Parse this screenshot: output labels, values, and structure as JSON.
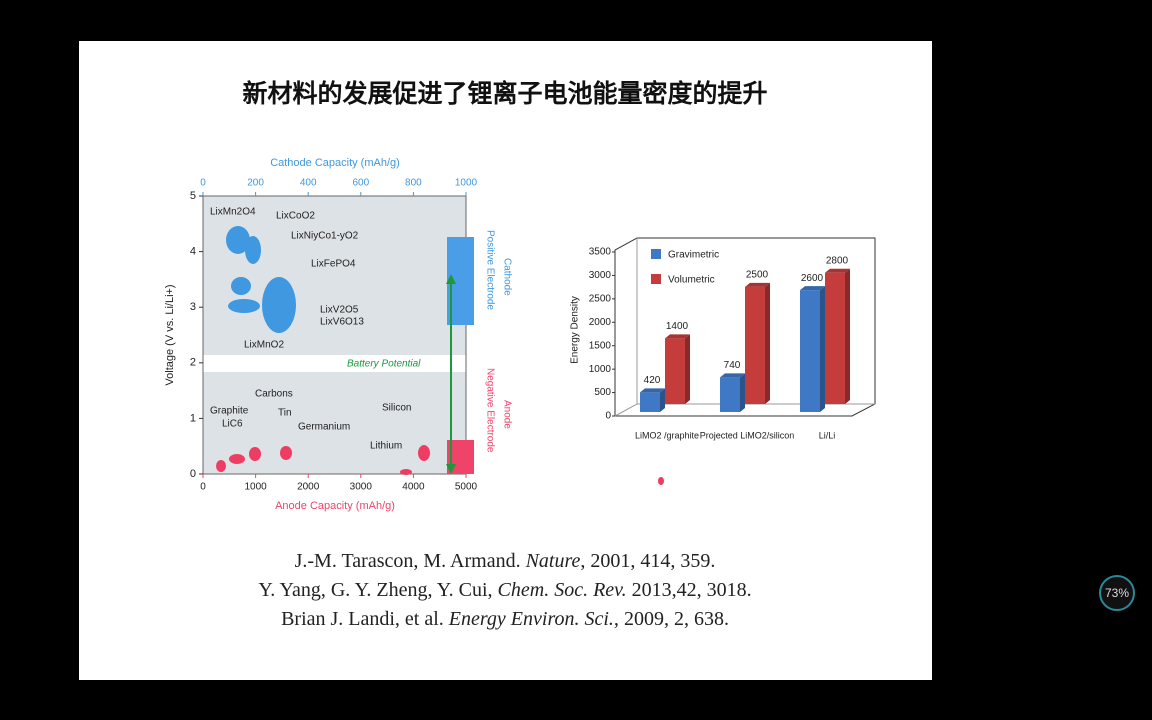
{
  "slide": {
    "title": "新材料的发展促进了锂离子电池能量密度的提升",
    "figure": {
      "cathode_axis_title": "Cathode Capacity (mAh/g)",
      "anode_axis_title": "Anode Capacity (mAh/g)",
      "voltage_axis_title": "Voltage (V vs. Li/Li+)",
      "cathode_range": [
        0,
        1000
      ],
      "cathode_ticks": [
        0,
        200,
        400,
        600,
        800,
        1000
      ],
      "anode_range": [
        0,
        5000
      ],
      "anode_ticks": [
        0,
        1000,
        2000,
        3000,
        4000,
        5000
      ],
      "voltage_range": [
        0,
        5
      ],
      "voltage_ticks": [
        0,
        1,
        2,
        3,
        4,
        5
      ],
      "labels": [
        "LixMn2O4",
        "LixCoO2",
        "LixNiyCo1-yO2",
        "LixFePO4",
        "LixV2O5",
        "LixV6O13",
        "LixMnO2",
        "Carbons",
        "Graphite",
        "LiC6",
        "Tin",
        "Germanium",
        "Silicon",
        "Lithium",
        "Battery Potential"
      ],
      "cathode_side": [
        "Cathode",
        "Positive Electrode"
      ],
      "anode_side": [
        "Anode",
        "Negative Electrode"
      ]
    },
    "references": [
      {
        "authors": "J.-M. Tarascon, M. Armand.",
        "journal": "Nature",
        "details": ", 2001, 414, 359."
      },
      {
        "authors": "Y. Yang, G. Y. Zheng, Y. Cui,",
        "journal": "Chem. Soc. Rev.",
        "details": " 2013,42, 3018."
      },
      {
        "authors": "Brian J. Landi, et al.",
        "journal": "Energy Environ. Sci.,",
        "details": " 2009, 2, 638."
      }
    ]
  },
  "chart_data": {
    "type": "bar",
    "y_label": "Energy Density",
    "categories": [
      "LiMO2 /graphite",
      "Projected LiMO2/silicon",
      "Li/Li"
    ],
    "series": [
      {
        "name": "Gravimetric",
        "color": "#3f78c4",
        "values": [
          420,
          740,
          2600
        ]
      },
      {
        "name": "Volumetric",
        "color": "#c43c3c",
        "values": [
          1400,
          2500,
          2800
        ]
      }
    ],
    "ylim": [
      0,
      3500
    ],
    "yticks": [
      0,
      500,
      1000,
      1500,
      2000,
      2500,
      3000,
      3500
    ]
  },
  "player": {
    "zoom": "73%"
  }
}
